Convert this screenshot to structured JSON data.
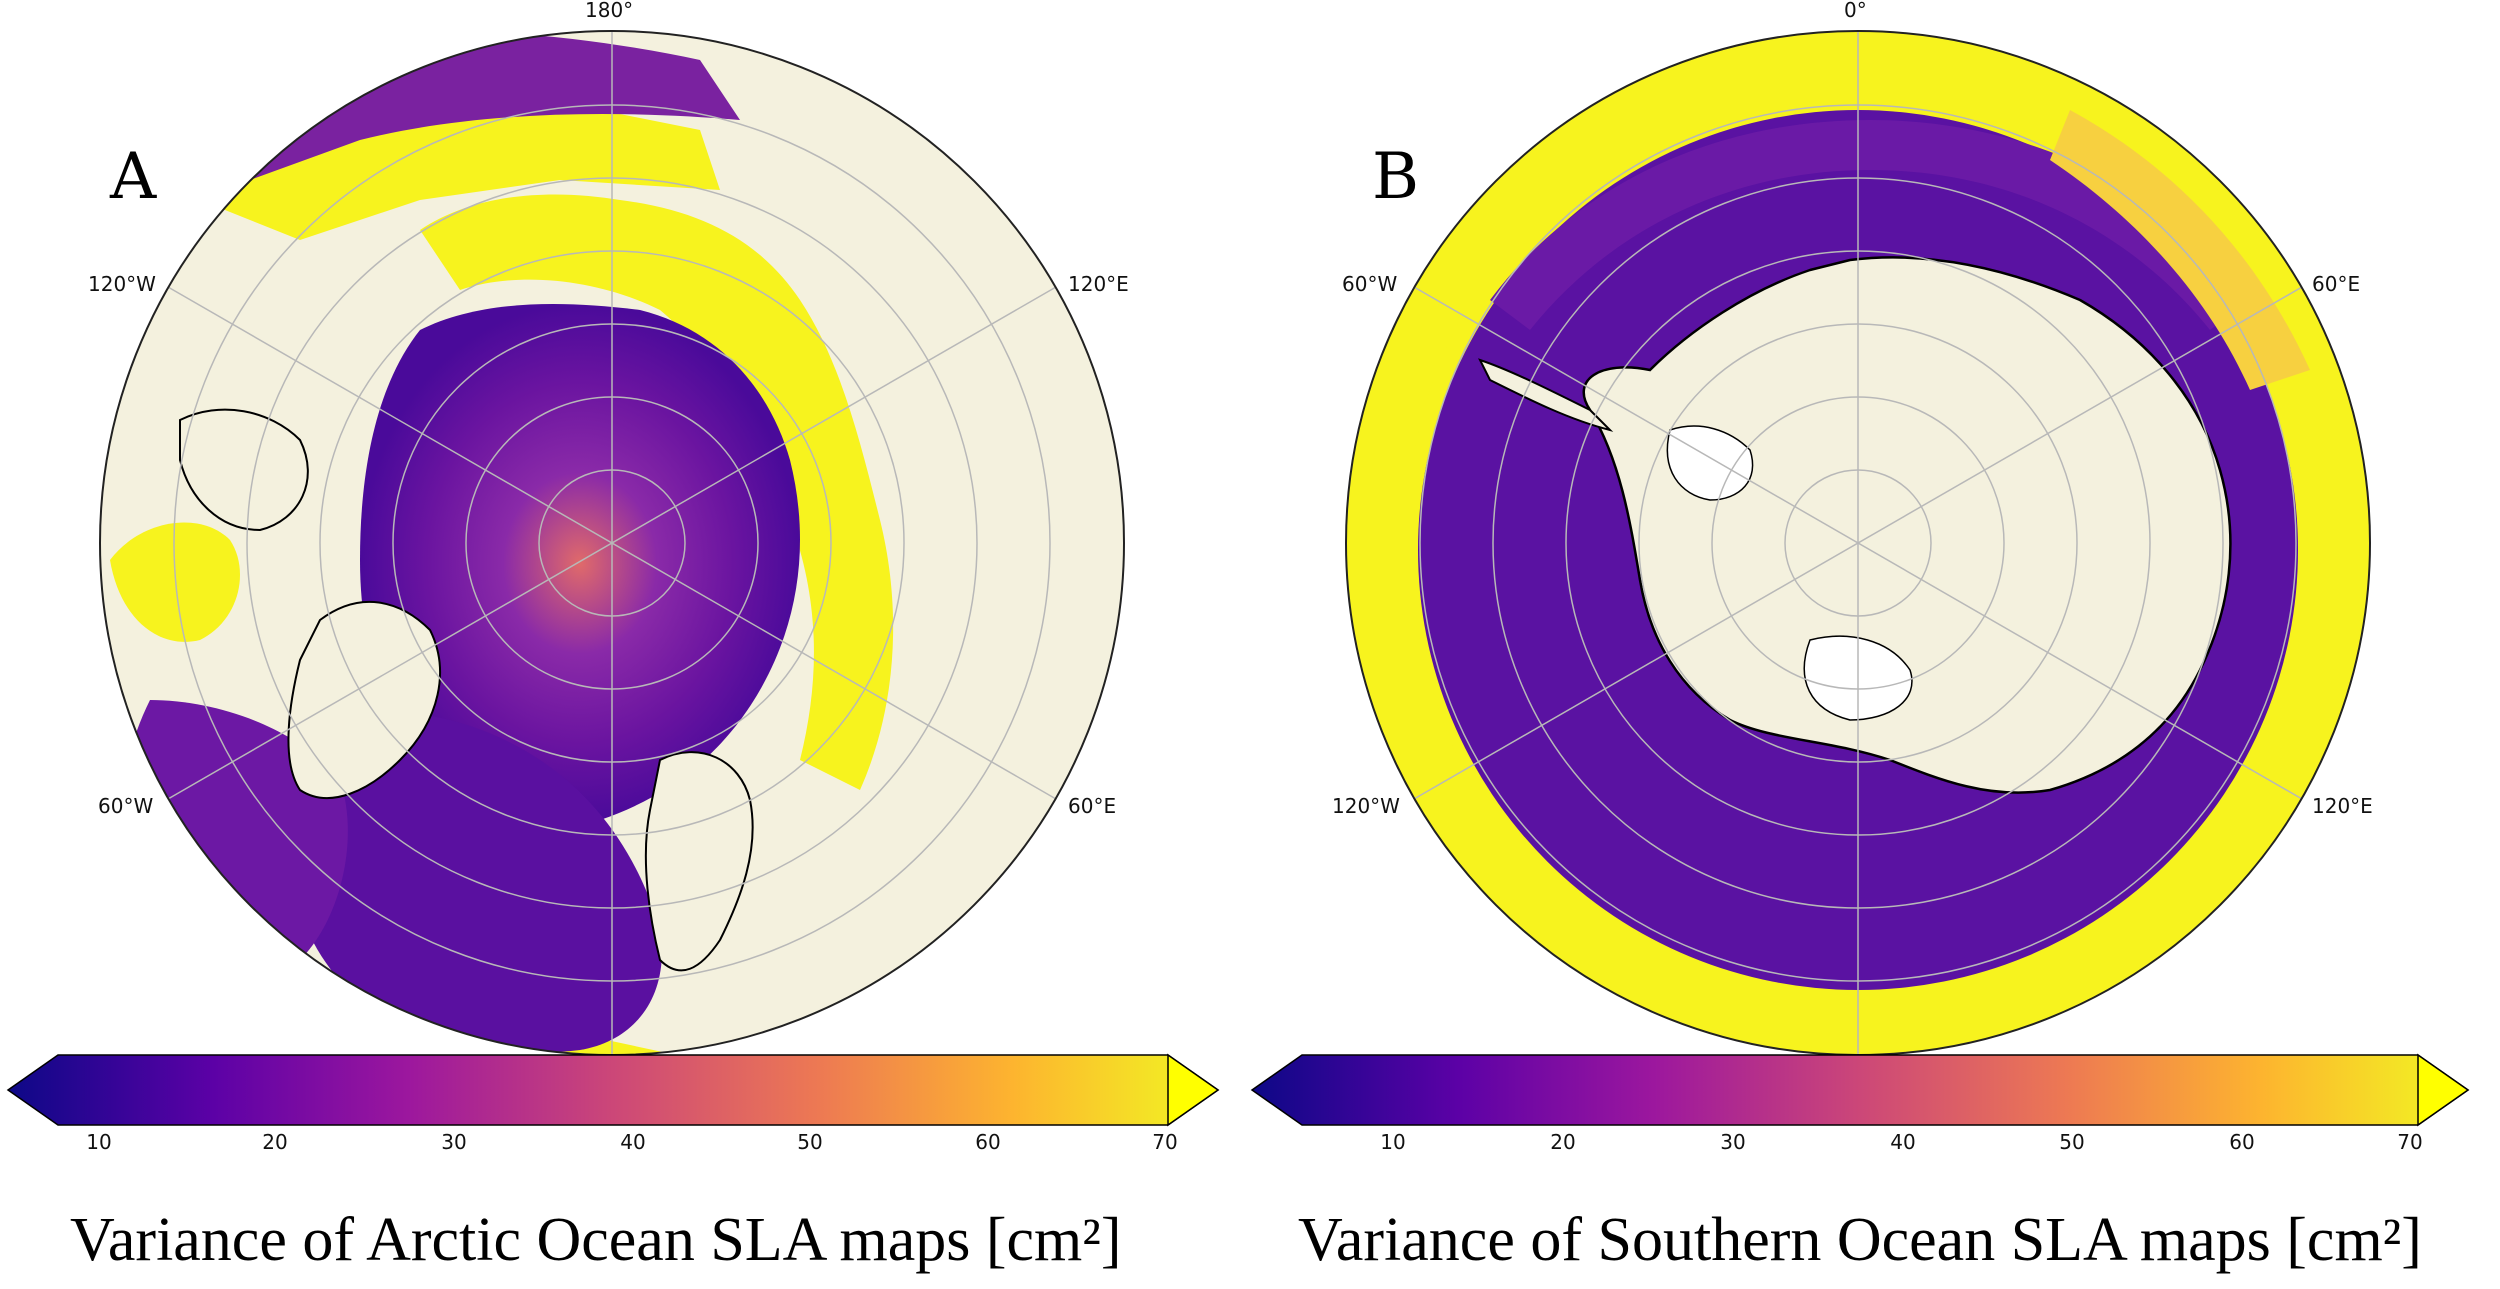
{
  "panels": [
    {
      "letter": "A",
      "caption": "Variance of Arctic Ocean SLA maps [cm²]",
      "lon_labels": {
        "top": "180°",
        "upper_left": "120°W",
        "upper_right": "120°E",
        "lower_left": "60°W",
        "lower_right": "60°E"
      },
      "colorbar_ticks": [
        "10",
        "20",
        "30",
        "40",
        "50",
        "60",
        "70"
      ]
    },
    {
      "letter": "B",
      "caption": "Variance of Southern Ocean SLA maps [cm²]",
      "lon_labels": {
        "top": "0°",
        "upper_left": "60°W",
        "upper_right": "60°E",
        "lower_left": "120°W",
        "lower_right": "120°E"
      },
      "colorbar_ticks": [
        "10",
        "20",
        "30",
        "40",
        "50",
        "60",
        "70"
      ]
    }
  ],
  "colors": {
    "land": "#f4f1de",
    "colormap": [
      "#0d0887",
      "#5c01a6",
      "#9c179e",
      "#cc4778",
      "#ed7953",
      "#fdb42f",
      "#f0f921"
    ],
    "saturated": "#ffff00",
    "gridline": "#b8b8b8"
  },
  "colorbar_range": [
    5,
    70
  ]
}
